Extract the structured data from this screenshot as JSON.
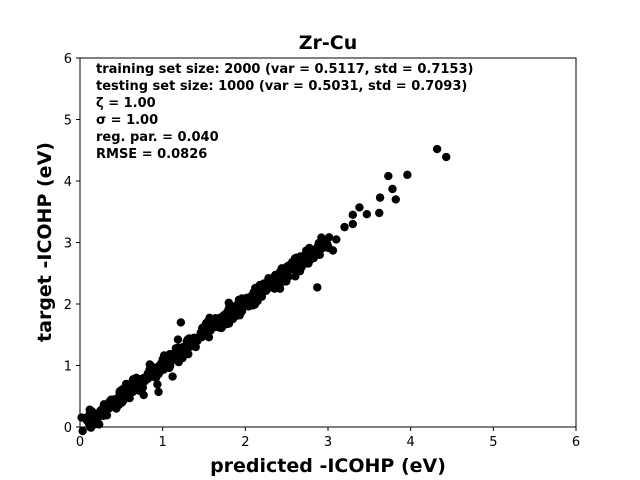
{
  "chart_data": {
    "type": "scatter",
    "title": "Zr-Cu",
    "xlabel": "predicted -ICOHP (eV)",
    "ylabel": "target -ICOHP (eV)",
    "xlim": [
      0,
      6
    ],
    "ylim": [
      0,
      6
    ],
    "xticks": [
      "0",
      "1",
      "2",
      "3",
      "4",
      "5",
      "6"
    ],
    "yticks": [
      "0",
      "1",
      "2",
      "3",
      "4",
      "5",
      "6"
    ],
    "grid": false,
    "marker_color": "#000000",
    "annotations": [
      "training set size:  2000 (var = 0.5117, std = 0.7153)",
      "testing set size:   1000 (var = 0.5031, std = 0.7093)",
      "ζ = 1.00",
      "σ = 1.00",
      "reg. par. = 0.040",
      "RMSE = 0.0826"
    ],
    "outliers": [
      {
        "x": 4.32,
        "y": 4.52
      },
      {
        "x": 4.43,
        "y": 4.39
      },
      {
        "x": 3.96,
        "y": 4.1
      },
      {
        "x": 3.73,
        "y": 4.08
      },
      {
        "x": 3.78,
        "y": 3.87
      },
      {
        "x": 3.82,
        "y": 3.7
      },
      {
        "x": 3.63,
        "y": 3.73
      },
      {
        "x": 3.62,
        "y": 3.48
      },
      {
        "x": 3.47,
        "y": 3.46
      },
      {
        "x": 3.38,
        "y": 3.57
      },
      {
        "x": 3.3,
        "y": 3.45
      },
      {
        "x": 3.3,
        "y": 3.3
      },
      {
        "x": 3.2,
        "y": 3.25
      },
      {
        "x": 3.1,
        "y": 3.05
      },
      {
        "x": 3.06,
        "y": 2.87
      },
      {
        "x": 2.87,
        "y": 2.27
      },
      {
        "x": 1.22,
        "y": 1.7
      },
      {
        "x": 0.95,
        "y": 0.57
      },
      {
        "x": 1.12,
        "y": 0.82
      },
      {
        "x": 0.77,
        "y": 0.52
      },
      {
        "x": 1.68,
        "y": 1.62
      },
      {
        "x": 1.8,
        "y": 2.02
      },
      {
        "x": 2.42,
        "y": 2.25
      },
      {
        "x": 2.7,
        "y": 2.78
      },
      {
        "x": 2.92,
        "y": 3.08
      }
    ],
    "main_points": [
      {
        "x": 0.1,
        "y": 0.08
      },
      {
        "x": 0.14,
        "y": 0.16
      },
      {
        "x": 0.18,
        "y": 0.12
      },
      {
        "x": 0.22,
        "y": 0.21
      },
      {
        "x": 0.26,
        "y": 0.28
      },
      {
        "x": 0.3,
        "y": 0.25
      },
      {
        "x": 0.34,
        "y": 0.36
      },
      {
        "x": 0.38,
        "y": 0.33
      },
      {
        "x": 0.42,
        "y": 0.45
      },
      {
        "x": 0.46,
        "y": 0.41
      },
      {
        "x": 0.5,
        "y": 0.53
      },
      {
        "x": 0.54,
        "y": 0.49
      },
      {
        "x": 0.58,
        "y": 0.62
      },
      {
        "x": 0.62,
        "y": 0.57
      },
      {
        "x": 0.66,
        "y": 0.7
      },
      {
        "x": 0.7,
        "y": 0.66
      },
      {
        "x": 0.74,
        "y": 0.78
      },
      {
        "x": 0.78,
        "y": 0.74
      },
      {
        "x": 0.82,
        "y": 0.87
      },
      {
        "x": 0.86,
        "y": 0.82
      },
      {
        "x": 0.9,
        "y": 0.95
      },
      {
        "x": 0.94,
        "y": 0.9
      },
      {
        "x": 0.98,
        "y": 1.03
      },
      {
        "x": 1.02,
        "y": 0.99
      },
      {
        "x": 1.06,
        "y": 1.12
      },
      {
        "x": 1.1,
        "y": 1.07
      },
      {
        "x": 1.14,
        "y": 1.2
      },
      {
        "x": 1.18,
        "y": 1.15
      },
      {
        "x": 1.22,
        "y": 1.28
      },
      {
        "x": 1.26,
        "y": 1.24
      },
      {
        "x": 1.3,
        "y": 1.36
      },
      {
        "x": 1.34,
        "y": 1.32
      },
      {
        "x": 1.38,
        "y": 1.45
      },
      {
        "x": 1.42,
        "y": 1.4
      },
      {
        "x": 1.46,
        "y": 1.53
      },
      {
        "x": 1.5,
        "y": 1.49
      },
      {
        "x": 1.54,
        "y": 1.62
      },
      {
        "x": 1.58,
        "y": 1.57
      },
      {
        "x": 1.62,
        "y": 1.7
      },
      {
        "x": 1.66,
        "y": 1.66
      },
      {
        "x": 1.7,
        "y": 1.78
      },
      {
        "x": 1.74,
        "y": 1.74
      },
      {
        "x": 1.78,
        "y": 1.87
      },
      {
        "x": 1.82,
        "y": 1.82
      },
      {
        "x": 1.86,
        "y": 1.95
      },
      {
        "x": 1.9,
        "y": 1.91
      },
      {
        "x": 1.94,
        "y": 2.03
      },
      {
        "x": 1.98,
        "y": 1.99
      },
      {
        "x": 2.02,
        "y": 2.1
      },
      {
        "x": 2.06,
        "y": 2.07
      },
      {
        "x": 2.1,
        "y": 2.19
      },
      {
        "x": 2.14,
        "y": 2.15
      },
      {
        "x": 2.18,
        "y": 2.27
      },
      {
        "x": 2.22,
        "y": 2.23
      },
      {
        "x": 2.26,
        "y": 2.35
      },
      {
        "x": 2.3,
        "y": 2.32
      },
      {
        "x": 2.34,
        "y": 2.43
      },
      {
        "x": 2.38,
        "y": 2.4
      },
      {
        "x": 2.42,
        "y": 2.52
      },
      {
        "x": 2.46,
        "y": 2.48
      },
      {
        "x": 2.5,
        "y": 2.6
      },
      {
        "x": 2.54,
        "y": 2.56
      },
      {
        "x": 2.58,
        "y": 2.68
      },
      {
        "x": 2.62,
        "y": 2.64
      },
      {
        "x": 2.66,
        "y": 2.76
      },
      {
        "x": 2.72,
        "y": 2.72
      },
      {
        "x": 2.78,
        "y": 2.85
      },
      {
        "x": 2.84,
        "y": 2.78
      },
      {
        "x": 2.88,
        "y": 2.93
      },
      {
        "x": 2.94,
        "y": 2.96
      },
      {
        "x": 0.12,
        "y": 0.22
      },
      {
        "x": 0.2,
        "y": 0.05
      },
      {
        "x": 0.28,
        "y": 0.18
      },
      {
        "x": 0.36,
        "y": 0.42
      },
      {
        "x": 0.44,
        "y": 0.3
      },
      {
        "x": 0.52,
        "y": 0.6
      },
      {
        "x": 0.6,
        "y": 0.47
      },
      {
        "x": 0.68,
        "y": 0.78
      },
      {
        "x": 0.76,
        "y": 0.64
      },
      {
        "x": 0.84,
        "y": 0.93
      },
      {
        "x": 0.92,
        "y": 0.8
      },
      {
        "x": 1.0,
        "y": 1.1
      },
      {
        "x": 1.08,
        "y": 0.96
      },
      {
        "x": 1.16,
        "y": 1.28
      },
      {
        "x": 1.24,
        "y": 1.12
      },
      {
        "x": 1.32,
        "y": 1.44
      },
      {
        "x": 1.4,
        "y": 1.3
      },
      {
        "x": 1.48,
        "y": 1.6
      },
      {
        "x": 1.56,
        "y": 1.46
      },
      {
        "x": 1.64,
        "y": 1.77
      },
      {
        "x": 1.72,
        "y": 1.63
      },
      {
        "x": 1.8,
        "y": 1.93
      },
      {
        "x": 1.88,
        "y": 1.8
      },
      {
        "x": 1.96,
        "y": 2.09
      },
      {
        "x": 2.04,
        "y": 1.96
      },
      {
        "x": 2.12,
        "y": 2.26
      },
      {
        "x": 2.2,
        "y": 2.12
      },
      {
        "x": 2.28,
        "y": 2.42
      },
      {
        "x": 2.36,
        "y": 2.28
      },
      {
        "x": 2.44,
        "y": 2.58
      },
      {
        "x": 2.52,
        "y": 2.44
      },
      {
        "x": 2.6,
        "y": 2.74
      },
      {
        "x": 2.68,
        "y": 2.6
      },
      {
        "x": 2.76,
        "y": 2.88
      },
      {
        "x": 2.9,
        "y": 2.8
      }
    ]
  }
}
